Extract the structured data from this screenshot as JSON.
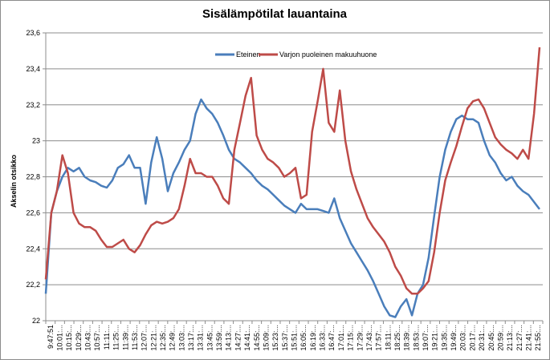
{
  "chart_data": {
    "type": "line",
    "title": "Sisälämpötilat lauantaina",
    "xlabel": "",
    "ylabel": "Akselin otsikko",
    "ylim": [
      22,
      23.6
    ],
    "yticks": [
      "22",
      "22,2",
      "22,4",
      "22,6",
      "22,8",
      "23",
      "23,2",
      "23,4",
      "23,6"
    ],
    "grid": "horizontal",
    "legend_position": "top-center",
    "x_tick_labels": [
      "9:47:51",
      "10:01:...",
      "10:15:...",
      "10:29:...",
      "10:43:...",
      "10:57:...",
      "11:11:...",
      "11:25:...",
      "11:39:...",
      "11:53:...",
      "12:07:...",
      "12:21:...",
      "12:35:...",
      "12:49:...",
      "13:03:...",
      "13:17:...",
      "13:31:...",
      "13:45:...",
      "13:59:...",
      "14:13:...",
      "14:27:...",
      "14:41:...",
      "14:55:...",
      "15:09:...",
      "15:23:...",
      "15:37:...",
      "15:51:...",
      "16:05:...",
      "16:19:...",
      "16:33:...",
      "16:47:...",
      "17:01:...",
      "17:15:...",
      "17:29:...",
      "17:43:...",
      "17:57:...",
      "18:11:...",
      "18:25:...",
      "18:39:...",
      "18:53:...",
      "19:07:...",
      "19:21:...",
      "19:35:...",
      "19:49:...",
      "20:03:...",
      "20:17:...",
      "20:31:...",
      "20:45:...",
      "20:59:...",
      "21:13:...",
      "21:27:...",
      "21:41:...",
      "21:55:..."
    ],
    "series": [
      {
        "name": "Eteinen",
        "color": "#4a7ebb",
        "values": [
          22.15,
          22.6,
          22.72,
          22.8,
          22.85,
          22.83,
          22.85,
          22.8,
          22.78,
          22.77,
          22.75,
          22.74,
          22.78,
          22.85,
          22.87,
          22.92,
          22.85,
          22.85,
          22.65,
          22.88,
          23.02,
          22.9,
          22.72,
          22.82,
          22.88,
          22.95,
          23.0,
          23.15,
          23.23,
          23.18,
          23.15,
          23.1,
          23.03,
          22.95,
          22.9,
          22.88,
          22.85,
          22.82,
          22.78,
          22.75,
          22.73,
          22.7,
          22.67,
          22.64,
          22.62,
          22.6,
          22.65,
          22.62,
          22.62,
          22.62,
          22.61,
          22.6,
          22.68,
          22.57,
          22.5,
          22.43,
          22.38,
          22.33,
          22.28,
          22.22,
          22.15,
          22.08,
          22.03,
          22.02,
          22.08,
          22.12,
          22.03,
          22.15,
          22.2,
          22.35,
          22.58,
          22.8,
          22.95,
          23.05,
          23.12,
          23.14,
          23.12,
          23.12,
          23.1,
          23.0,
          22.92,
          22.88,
          22.82,
          22.78,
          22.8,
          22.75,
          22.72,
          22.7,
          22.66,
          22.62
        ]
      },
      {
        "name": "Varjon puoleinen makuuhuone",
        "color": "#be4b48",
        "values": [
          22.23,
          22.6,
          22.72,
          22.92,
          22.82,
          22.6,
          22.54,
          22.52,
          22.52,
          22.5,
          22.45,
          22.41,
          22.41,
          22.43,
          22.45,
          22.4,
          22.38,
          22.42,
          22.48,
          22.53,
          22.55,
          22.54,
          22.55,
          22.57,
          22.62,
          22.75,
          22.9,
          22.82,
          22.82,
          22.8,
          22.8,
          22.75,
          22.68,
          22.65,
          22.95,
          23.1,
          23.25,
          23.35,
          23.03,
          22.95,
          22.9,
          22.88,
          22.85,
          22.8,
          22.82,
          22.85,
          22.68,
          22.7,
          23.05,
          23.22,
          23.4,
          23.1,
          23.05,
          23.28,
          23.0,
          22.83,
          22.73,
          22.65,
          22.57,
          22.52,
          22.48,
          22.44,
          22.38,
          22.3,
          22.25,
          22.18,
          22.15,
          22.15,
          22.18,
          22.22,
          22.38,
          22.6,
          22.78,
          22.88,
          22.97,
          23.08,
          23.18,
          23.22,
          23.23,
          23.18,
          23.1,
          23.02,
          22.98,
          22.95,
          22.93,
          22.9,
          22.95,
          22.9,
          23.15,
          23.52
        ]
      }
    ]
  }
}
